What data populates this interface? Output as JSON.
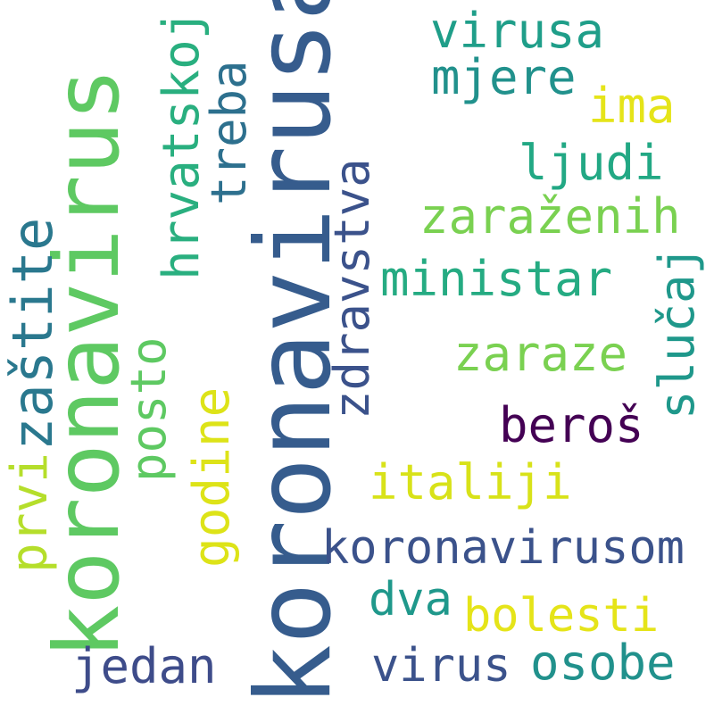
{
  "words": [
    {
      "id": "koronavirusa",
      "text": "koronavirusa",
      "color": "#365c8d",
      "orientation": "vertical"
    },
    {
      "id": "koronavirus",
      "text": "koronavirus",
      "color": "#5ec962",
      "orientation": "vertical"
    },
    {
      "id": "koronavirusom",
      "text": "koronavirusom",
      "color": "#3b528b",
      "orientation": "horizontal"
    },
    {
      "id": "virusa",
      "text": "virusa",
      "color": "#1f9e89",
      "orientation": "horizontal"
    },
    {
      "id": "mjere",
      "text": "mjere",
      "color": "#21918c",
      "orientation": "horizontal"
    },
    {
      "id": "ima",
      "text": "ima",
      "color": "#e5e419",
      "orientation": "horizontal"
    },
    {
      "id": "ljudi",
      "text": "ljudi",
      "color": "#22a884",
      "orientation": "horizontal"
    },
    {
      "id": "zarazenih",
      "text": "zaraženih",
      "color": "#7ad151",
      "orientation": "horizontal"
    },
    {
      "id": "ministar",
      "text": "ministar",
      "color": "#25ab82",
      "orientation": "horizontal"
    },
    {
      "id": "zaraze",
      "text": "zaraze",
      "color": "#7ad151",
      "orientation": "horizontal"
    },
    {
      "id": "beros",
      "text": "beroš",
      "color": "#440154",
      "orientation": "horizontal"
    },
    {
      "id": "italiji",
      "text": "italiji",
      "color": "#d8e219",
      "orientation": "horizontal"
    },
    {
      "id": "dva",
      "text": "dva",
      "color": "#1f988b",
      "orientation": "horizontal"
    },
    {
      "id": "bolesti",
      "text": "bolesti",
      "color": "#e5e419",
      "orientation": "horizontal"
    },
    {
      "id": "jedan",
      "text": "jedan",
      "color": "#3e4c8a",
      "orientation": "horizontal"
    },
    {
      "id": "virus",
      "text": "virus",
      "color": "#3b528b",
      "orientation": "horizontal"
    },
    {
      "id": "osobe",
      "text": "osobe",
      "color": "#21918c",
      "orientation": "horizontal"
    },
    {
      "id": "hrvatskoj",
      "text": "hrvatskoj",
      "color": "#29af7f",
      "orientation": "vertical"
    },
    {
      "id": "treba",
      "text": "treba",
      "color": "#2d708e",
      "orientation": "vertical"
    },
    {
      "id": "zdravstva",
      "text": "zdravstva",
      "color": "#3b528b",
      "orientation": "vertical"
    },
    {
      "id": "slucaj",
      "text": "slučaj",
      "color": "#1f988b",
      "orientation": "vertical"
    },
    {
      "id": "zastite",
      "text": "zaštite",
      "color": "#2a788e",
      "orientation": "vertical"
    },
    {
      "id": "posto",
      "text": "posto",
      "color": "#5ec962",
      "orientation": "vertical"
    },
    {
      "id": "godine",
      "text": "godine",
      "color": "#dde318",
      "orientation": "vertical"
    },
    {
      "id": "prvi",
      "text": "prvi",
      "color": "#b5de2b",
      "orientation": "vertical"
    }
  ]
}
